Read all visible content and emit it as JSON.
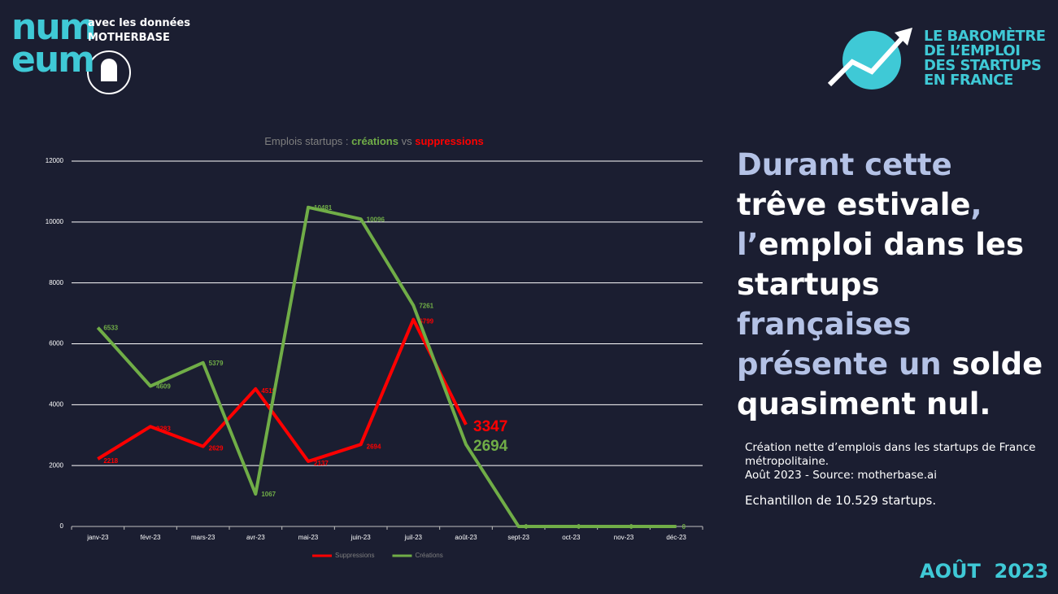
{
  "brand": {
    "logo": [
      "num",
      "eum"
    ],
    "tagline": "avec les données",
    "partner": "MOTHERBASE"
  },
  "barometer": [
    "LE BAROMÈTRE",
    "DE L’EMPLOI",
    "DES STARTUPS",
    "EN FRANCE"
  ],
  "chart_data": {
    "type": "line",
    "title": [
      {
        "text": "Emplois startups :",
        "series": null
      },
      {
        "text": "créations",
        "series": 1
      },
      {
        "text": "vs",
        "series": null
      },
      {
        "text": "suppressions",
        "series": 0
      }
    ],
    "categories": [
      "janv-23",
      "févr-23",
      "mars-23",
      "avr-23",
      "mai-23",
      "juin-23",
      "juil-23",
      "août-23",
      "sept-23",
      "oct-23",
      "nov-23",
      "déc-23"
    ],
    "series": [
      {
        "name": "Suppressions",
        "color": "#ff0000",
        "values": [
          2218,
          3283,
          2629,
          4519,
          2137,
          2694,
          6799,
          3347,
          null,
          null,
          null,
          null
        ]
      },
      {
        "name": "Créations",
        "color": "#70ad47",
        "values": [
          6533,
          4609,
          5379,
          1067,
          10481,
          10096,
          7261,
          2694,
          0,
          0,
          0,
          0
        ]
      }
    ],
    "ylim": [
      0,
      12000
    ],
    "yticks": [
      0,
      2000,
      4000,
      6000,
      8000,
      10000,
      12000
    ],
    "grid": true,
    "legend": "bottom"
  },
  "headline": [
    {
      "text": "Durant cette",
      "strong": false
    },
    {
      "text": "trêve estivale",
      "strong": true
    },
    {
      "text": ", l’",
      "strong": false
    },
    {
      "text": "emploi dans les startups",
      "strong": true
    },
    {
      "text": "françaises présente un",
      "strong": false
    },
    {
      "text": "solde quasiment nul.",
      "strong": true
    }
  ],
  "notes": [
    "Création nette d’emplois dans les startups de France métropolitaine.",
    "Août 2023 - Source: motherbase.ai",
    "Echantillon de 10.529 startups."
  ],
  "footer": "AOÛT  2023"
}
